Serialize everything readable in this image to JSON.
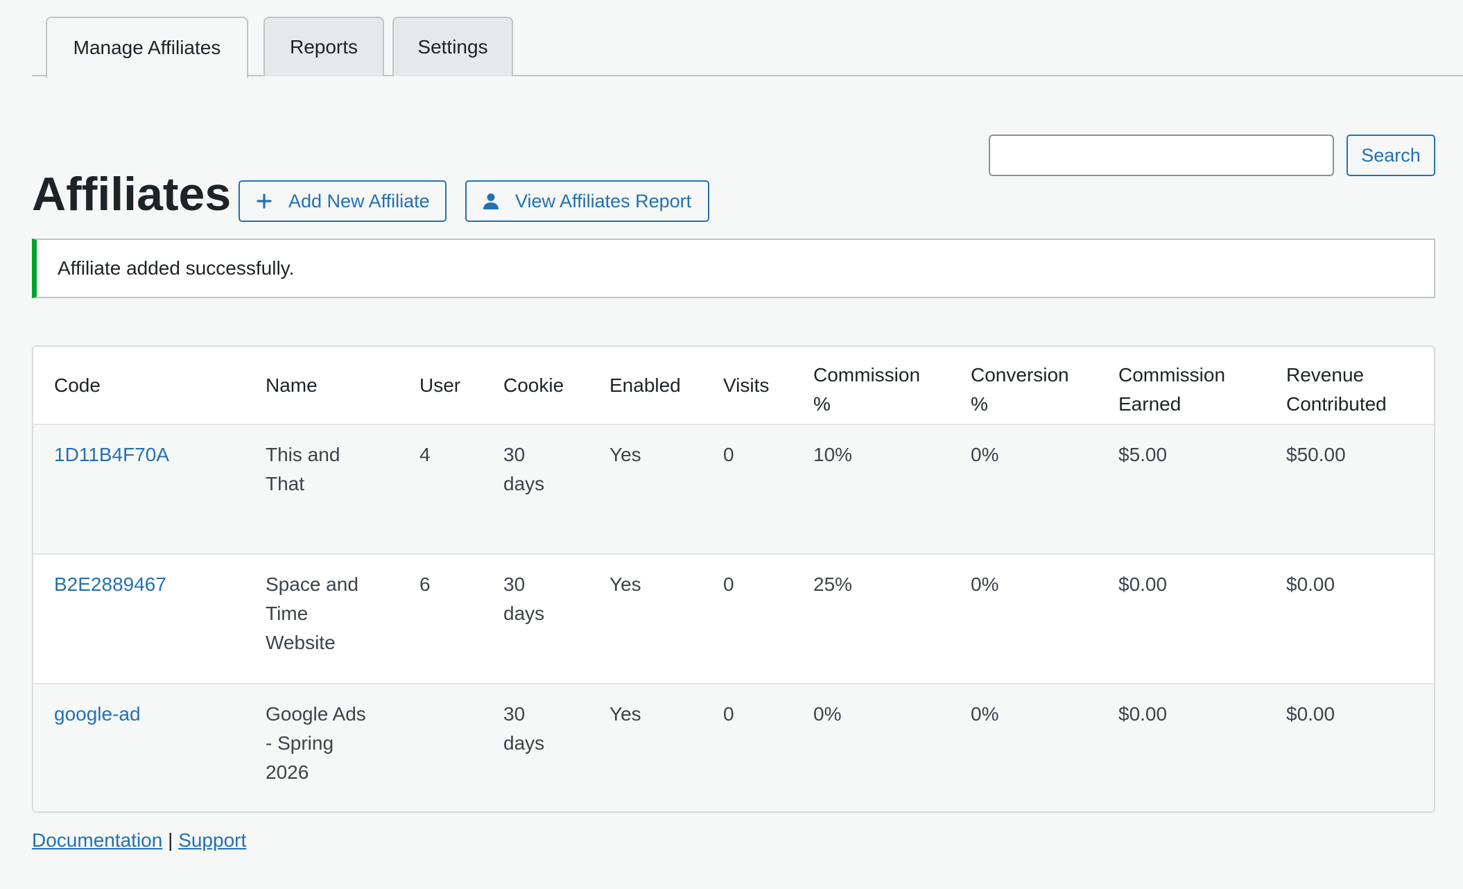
{
  "tabs": [
    {
      "label": "Manage Affiliates",
      "active": true
    },
    {
      "label": "Reports",
      "active": false
    },
    {
      "label": "Settings",
      "active": false
    }
  ],
  "header": {
    "title": "Affiliates",
    "add_button_label": "Add New Affiliate",
    "add_button_icon": "plus-icon",
    "report_button_label": "View Affiliates Report",
    "report_button_icon": "user-icon"
  },
  "search": {
    "value": "",
    "placeholder": "",
    "button_label": "Search"
  },
  "notice": {
    "message": "Affiliate added successfully.",
    "color": "#00a32a"
  },
  "table": {
    "columns": [
      {
        "line1": "Code",
        "line2": ""
      },
      {
        "line1": "Name",
        "line2": ""
      },
      {
        "line1": "User",
        "line2": ""
      },
      {
        "line1": "Cookie",
        "line2": ""
      },
      {
        "line1": "Enabled",
        "line2": ""
      },
      {
        "line1": "Visits",
        "line2": ""
      },
      {
        "line1": "Commission",
        "line2": "%"
      },
      {
        "line1": "Conversion",
        "line2": "%"
      },
      {
        "line1": "Commission",
        "line2": "Earned"
      },
      {
        "line1": "Revenue",
        "line2": "Contributed"
      }
    ],
    "rows": [
      {
        "code": "1D11B4F70A",
        "name_lines": [
          "This and",
          "That"
        ],
        "user": "4",
        "cookie_lines": [
          "30",
          "days"
        ],
        "enabled": "Yes",
        "visits": "0",
        "commission_pct": "10%",
        "conversion_pct": "0%",
        "commission_earned": "$5.00",
        "revenue_contributed": "$50.00"
      },
      {
        "code": "B2E2889467",
        "name_lines": [
          "Space and",
          "Time",
          "Website"
        ],
        "user": "6",
        "cookie_lines": [
          "30",
          "days"
        ],
        "enabled": "Yes",
        "visits": "0",
        "commission_pct": "25%",
        "conversion_pct": "0%",
        "commission_earned": "$0.00",
        "revenue_contributed": "$0.00"
      },
      {
        "code": "google-ad",
        "name_lines": [
          "Google Ads",
          "- Spring",
          "2026"
        ],
        "user": "",
        "cookie_lines": [
          "30",
          "days"
        ],
        "enabled": "Yes",
        "visits": "0",
        "commission_pct": "0%",
        "conversion_pct": "0%",
        "commission_earned": "$0.00",
        "revenue_contributed": "$0.00"
      }
    ]
  },
  "footer": {
    "documentation_label": "Documentation",
    "separator": "|",
    "support_label": "Support"
  },
  "colors": {
    "accent": "#2271b1",
    "background": "#f6f7f7"
  }
}
